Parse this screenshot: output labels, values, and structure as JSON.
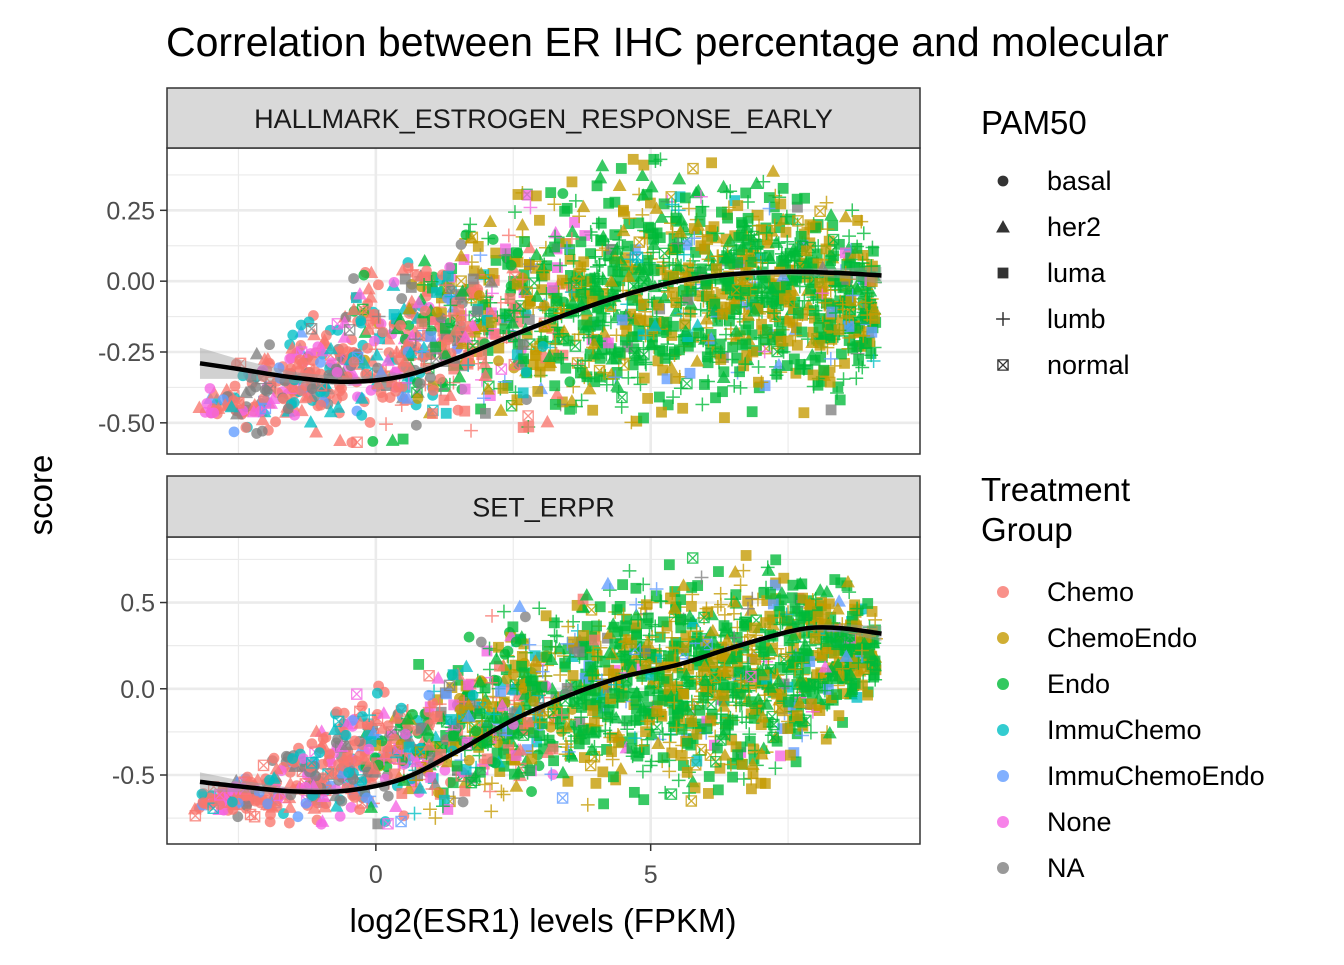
{
  "chart_data": {
    "type": "scatter",
    "title": "Correlation between ER IHC percentage and molecular",
    "xlabel": "log2(ESR1) levels (FPKM)",
    "ylabel": "score",
    "xlim": [
      -3.8,
      9.9
    ],
    "x_ticks": [
      0,
      5
    ],
    "x_tick_labels": [
      "0",
      "5"
    ],
    "x_minor_ticks": [
      -2.5,
      2.5,
      7.5
    ],
    "grid": true,
    "legend_position": "right",
    "panels": [
      {
        "strip_label": "HALLMARK_ESTROGEN_RESPONSE_EARLY",
        "ylim": [
          -0.61,
          0.47
        ],
        "y_ticks": [
          0.25,
          0.0,
          -0.25,
          -0.5
        ],
        "y_tick_labels": [
          "0.25",
          "0.00",
          "-0.25",
          "-0.50"
        ],
        "y_minor_ticks": [
          0.375,
          0.125,
          -0.125,
          -0.375
        ],
        "trend": {
          "x": [
            -3.2,
            -2.5,
            -1.5,
            -0.5,
            0.5,
            1.5,
            2.5,
            3.5,
            4.5,
            5.5,
            6.5,
            7.5,
            8.5,
            9.2
          ],
          "y": [
            -0.29,
            -0.31,
            -0.34,
            -0.355,
            -0.335,
            -0.27,
            -0.19,
            -0.115,
            -0.05,
            0.0,
            0.025,
            0.033,
            0.028,
            0.02
          ],
          "se": [
            0.055,
            0.035,
            0.02,
            0.014,
            0.012,
            0.01,
            0.01,
            0.009,
            0.009,
            0.009,
            0.01,
            0.012,
            0.018,
            0.03
          ]
        },
        "cloud": {
          "x": [
            -3.3,
            -2.5,
            -1.5,
            -0.5,
            0.5,
            1.5,
            2.5,
            3.5,
            4.5,
            5.5,
            6.5,
            7.5,
            8.5,
            9.1
          ],
          "lo": [
            -0.5,
            -0.56,
            -0.57,
            -0.57,
            -0.56,
            -0.53,
            -0.52,
            -0.5,
            -0.5,
            -0.49,
            -0.48,
            -0.47,
            -0.45,
            -0.35
          ],
          "hi": [
            -0.42,
            -0.28,
            -0.12,
            0.0,
            0.1,
            0.22,
            0.3,
            0.37,
            0.43,
            0.43,
            0.41,
            0.38,
            0.3,
            0.2
          ]
        }
      },
      {
        "strip_label": "SET_ERPR",
        "ylim": [
          -0.9,
          0.88
        ],
        "y_ticks": [
          0.5,
          0.0,
          -0.5
        ],
        "y_tick_labels": [
          "0.5",
          "0.0",
          "-0.5"
        ],
        "y_minor_ticks": [
          0.75,
          0.25,
          -0.25,
          -0.75
        ],
        "trend": {
          "x": [
            -3.2,
            -2.5,
            -1.5,
            -0.5,
            0.5,
            1.5,
            2.5,
            3.5,
            4.5,
            5.5,
            6.5,
            7.5,
            8.0,
            8.5,
            9.2
          ],
          "y": [
            -0.54,
            -0.565,
            -0.595,
            -0.59,
            -0.52,
            -0.36,
            -0.18,
            -0.04,
            0.07,
            0.14,
            0.24,
            0.33,
            0.355,
            0.35,
            0.32
          ],
          "se": [
            0.055,
            0.035,
            0.02,
            0.015,
            0.013,
            0.012,
            0.012,
            0.011,
            0.011,
            0.011,
            0.012,
            0.015,
            0.018,
            0.024,
            0.045
          ]
        },
        "cloud": {
          "x": [
            -3.3,
            -2.5,
            -1.5,
            -0.5,
            0.5,
            1.5,
            2.5,
            3.5,
            4.5,
            5.5,
            6.5,
            7.5,
            8.5,
            9.1
          ],
          "lo": [
            -0.74,
            -0.76,
            -0.78,
            -0.79,
            -0.78,
            -0.75,
            -0.7,
            -0.68,
            -0.66,
            -0.66,
            -0.62,
            -0.5,
            -0.25,
            0.0
          ],
          "hi": [
            -0.6,
            -0.5,
            -0.3,
            -0.05,
            0.08,
            0.3,
            0.5,
            0.6,
            0.7,
            0.75,
            0.78,
            0.75,
            0.65,
            0.45
          ]
        }
      }
    ],
    "shape_legend": {
      "title": "PAM50",
      "items": [
        {
          "label": "basal",
          "shape": "circle"
        },
        {
          "label": "her2",
          "shape": "triangle"
        },
        {
          "label": "luma",
          "shape": "square"
        },
        {
          "label": "lumb",
          "shape": "plus"
        },
        {
          "label": "normal",
          "shape": "square-x"
        }
      ]
    },
    "color_legend": {
      "title_lines": [
        "Treatment",
        "Group"
      ],
      "items": [
        {
          "label": "Chemo",
          "color": "#F8766D"
        },
        {
          "label": "ChemoEndo",
          "color": "#C49A00"
        },
        {
          "label": "Endo",
          "color": "#00BA38"
        },
        {
          "label": "ImmuChemo",
          "color": "#00BFC4"
        },
        {
          "label": "ImmuChemoEndo",
          "color": "#619CFF"
        },
        {
          "label": "None",
          "color": "#F564E3"
        },
        {
          "label": "NA",
          "color": "#808080"
        }
      ]
    },
    "colors": {
      "panel_border": "#333333",
      "strip_fill": "#D9D9D9",
      "grid_major": "#EBEBEB",
      "trend_line": "#000000",
      "ribbon": "#999999"
    }
  }
}
